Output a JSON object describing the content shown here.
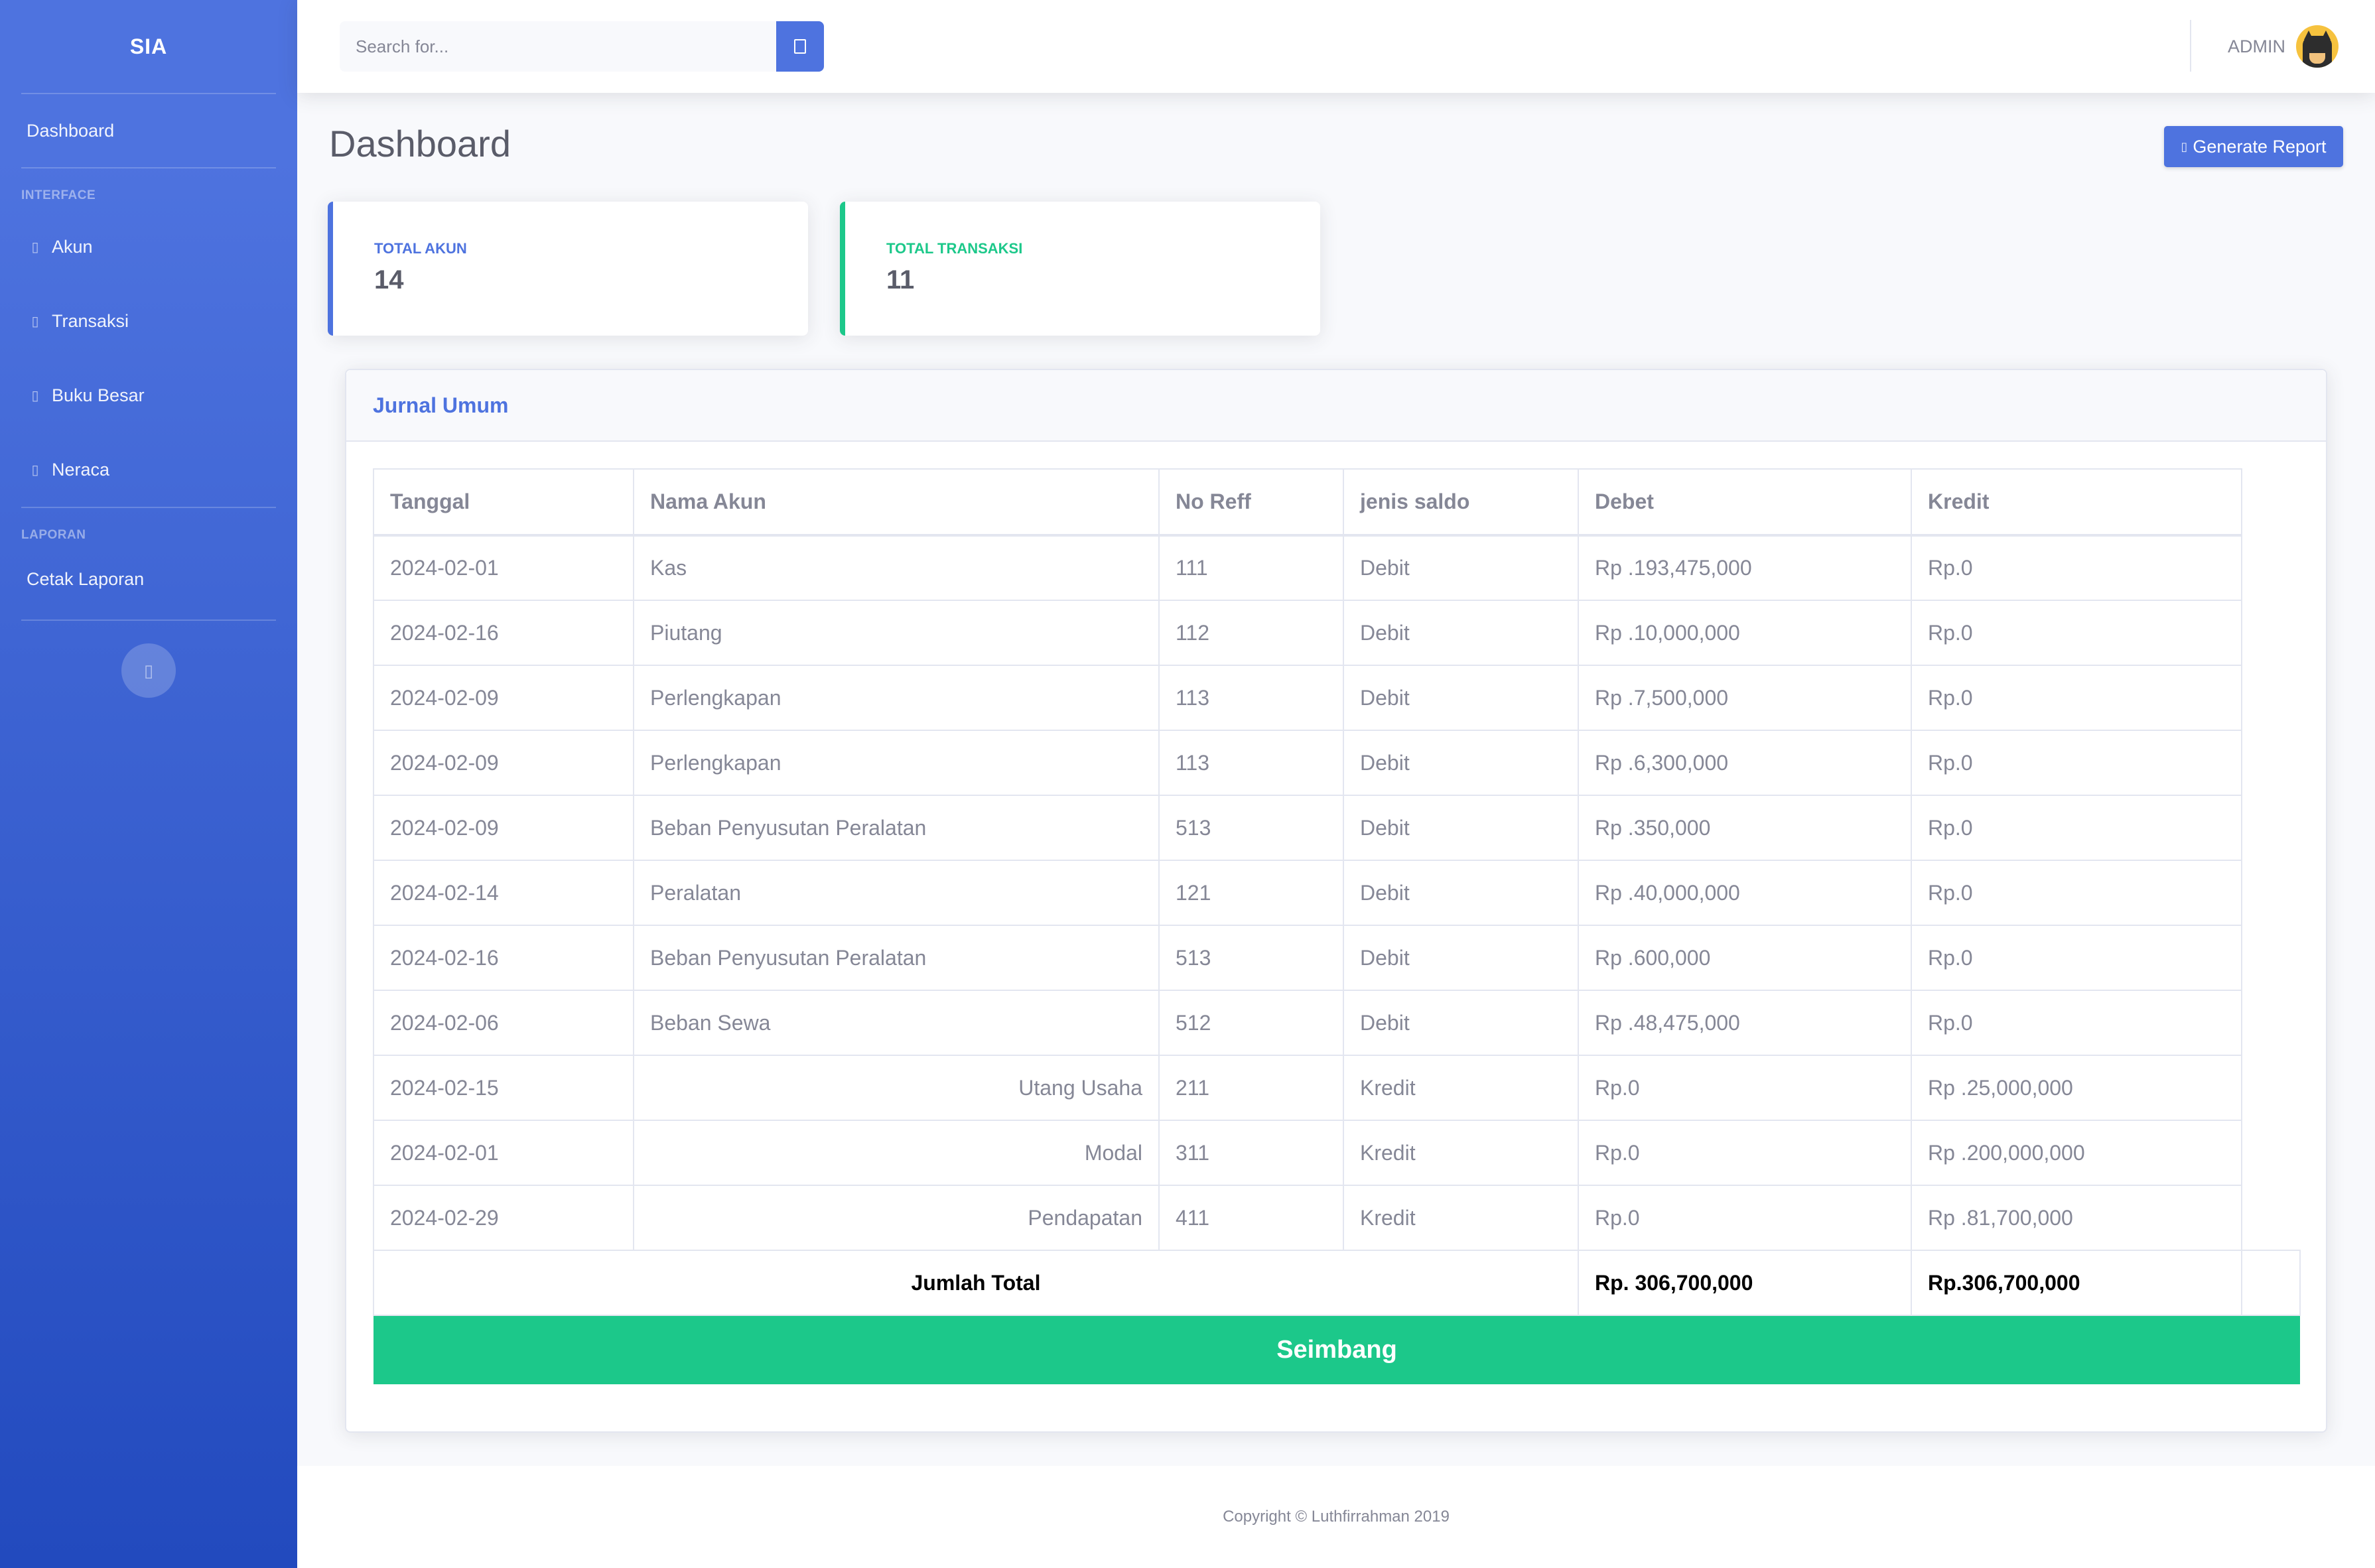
{
  "sidebar": {
    "brand": "SIA",
    "dashboard": "Dashboard",
    "heading_interface": "INTERFACE",
    "items": [
      {
        "label": "Akun",
        "icon": "square-icon"
      },
      {
        "label": "Transaksi",
        "icon": "square-icon"
      },
      {
        "label": "Buku Besar",
        "icon": "square-icon"
      },
      {
        "label": "Neraca",
        "icon": "square-icon"
      }
    ],
    "heading_laporan": "LAPORAN",
    "cetak_laporan": "Cetak Laporan"
  },
  "topbar": {
    "search_placeholder": "Search for...",
    "user_name": "ADMIN"
  },
  "page": {
    "title": "Dashboard",
    "generate_button": "Generate Report"
  },
  "stats": {
    "akun_label": "TOTAL AKUN",
    "akun_value": "14",
    "transaksi_label": "TOTAL TRANSAKSI",
    "transaksi_value": "11"
  },
  "jurnal": {
    "title": "Jurnal Umum",
    "columns": [
      "Tanggal",
      "Nama Akun",
      "No Reff",
      "jenis saldo",
      "Debet",
      "Kredit"
    ],
    "rows": [
      [
        "2024-02-01",
        "Kas",
        "111",
        "Debit",
        "Rp .193,475,000",
        "Rp.0"
      ],
      [
        "2024-02-16",
        "Piutang",
        "112",
        "Debit",
        "Rp .10,000,000",
        "Rp.0"
      ],
      [
        "2024-02-09",
        "Perlengkapan",
        "113",
        "Debit",
        "Rp .7,500,000",
        "Rp.0"
      ],
      [
        "2024-02-09",
        "Perlengkapan",
        "113",
        "Debit",
        "Rp .6,300,000",
        "Rp.0"
      ],
      [
        "2024-02-09",
        "Beban Penyusutan Peralatan",
        "513",
        "Debit",
        "Rp .350,000",
        "Rp.0"
      ],
      [
        "2024-02-14",
        "Peralatan",
        "121",
        "Debit",
        "Rp .40,000,000",
        "Rp.0"
      ],
      [
        "2024-02-16",
        "Beban Penyusutan Peralatan",
        "513",
        "Debit",
        "Rp .600,000",
        "Rp.0"
      ],
      [
        "2024-02-06",
        "Beban Sewa",
        "512",
        "Debit",
        "Rp .48,475,000",
        "Rp.0"
      ],
      [
        "2024-02-15",
        "Utang Usaha",
        "211",
        "Kredit",
        "Rp.0",
        "Rp .25,000,000"
      ],
      [
        "2024-02-01",
        "Modal",
        "311",
        "Kredit",
        "Rp.0",
        "Rp .200,000,000"
      ],
      [
        "2024-02-29",
        "Pendapatan",
        "411",
        "Kredit",
        "Rp.0",
        "Rp .81,700,000"
      ]
    ],
    "total_label": "Jumlah Total",
    "total_debet": "Rp. 306,700,000",
    "total_kredit": "Rp.306,700,000",
    "status": "Seimbang"
  },
  "footer": {
    "copyright": "Copyright © Luthfirrahman 2019"
  },
  "colors": {
    "primary": "#4e73df",
    "success": "#1cc88a",
    "text": "#858796",
    "heading": "#5a5c69"
  }
}
